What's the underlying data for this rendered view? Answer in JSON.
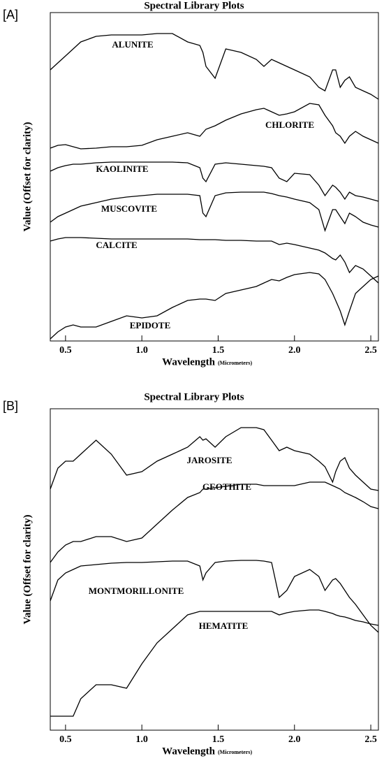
{
  "chart_data": [
    {
      "type": "line",
      "panel_label": "[A]",
      "title": "Spectral Library Plots",
      "xlabel": "Wavelength",
      "xlabel_units": "(Micrometers)",
      "ylabel": "Value (Offset for clarity)",
      "x": [
        0.4,
        0.45,
        0.5,
        0.55,
        0.6,
        0.7,
        0.8,
        0.9,
        1.0,
        1.1,
        1.2,
        1.3,
        1.38,
        1.4,
        1.42,
        1.48,
        1.55,
        1.65,
        1.75,
        1.8,
        1.85,
        1.9,
        1.95,
        2.0,
        2.1,
        2.16,
        2.2,
        2.25,
        2.27,
        2.3,
        2.33,
        2.36,
        2.4,
        2.45,
        2.5,
        2.55
      ],
      "xlim": [
        0.4,
        2.55
      ],
      "ylim": [
        0,
        470
      ],
      "xticks": [
        0.5,
        {
          "value": 1,
          "label": "1.0"
        },
        1.5,
        {
          "value": 2,
          "label": "2.0"
        },
        2.5
      ],
      "series": [
        {
          "name": "ALUNITE",
          "color": "#000000",
          "values": [
            388,
            398,
            408,
            418,
            428,
            436,
            438,
            438,
            438,
            440,
            440,
            428,
            423,
            413,
            393,
            376,
            418,
            413,
            403,
            393,
            403,
            398,
            393,
            388,
            378,
            363,
            358,
            388,
            388,
            363,
            373,
            378,
            363,
            358,
            353,
            346
          ]
        },
        {
          "name": "CHLORITE",
          "color": "#000000",
          "values": [
            276,
            280,
            281,
            278,
            275,
            276,
            278,
            278,
            280,
            288,
            293,
            298,
            293,
            298,
            303,
            308,
            316,
            325,
            331,
            333,
            328,
            323,
            325,
            328,
            340,
            338,
            323,
            308,
            298,
            293,
            283,
            293,
            300,
            293,
            288,
            283
          ]
        },
        {
          "name": "KAOLINITE",
          "color": "#000000",
          "values": [
            243,
            248,
            251,
            253,
            253,
            255,
            256,
            256,
            256,
            256,
            256,
            255,
            248,
            233,
            228,
            253,
            255,
            253,
            251,
            250,
            248,
            233,
            228,
            240,
            238,
            223,
            208,
            223,
            220,
            213,
            203,
            213,
            208,
            206,
            203,
            200
          ]
        },
        {
          "name": "MUSCOVITE",
          "color": "#000000",
          "values": [
            170,
            178,
            183,
            188,
            193,
            198,
            203,
            206,
            208,
            210,
            210,
            210,
            208,
            183,
            178,
            208,
            212,
            213,
            213,
            213,
            211,
            208,
            206,
            203,
            198,
            188,
            158,
            188,
            188,
            178,
            168,
            183,
            178,
            170,
            166,
            163
          ]
        },
        {
          "name": "CALCITE",
          "color": "#000000",
          "values": [
            143,
            146,
            148,
            148,
            148,
            147,
            146,
            146,
            146,
            146,
            146,
            146,
            145,
            145,
            145,
            145,
            144,
            144,
            143,
            143,
            143,
            138,
            140,
            138,
            133,
            130,
            126,
            118,
            116,
            123,
            113,
            98,
            108,
            103,
            93,
            83
          ]
        },
        {
          "name": "EPIDOTE",
          "color": "#000000",
          "values": [
            3,
            13,
            20,
            23,
            20,
            20,
            28,
            36,
            33,
            36,
            48,
            58,
            60,
            60,
            60,
            58,
            68,
            73,
            78,
            83,
            88,
            86,
            91,
            95,
            98,
            96,
            88,
            68,
            58,
            43,
            23,
            43,
            68,
            78,
            88,
            93
          ]
        }
      ]
    },
    {
      "type": "line",
      "panel_label": "[B]",
      "title": "Spectral Library Plots",
      "xlabel": "Wavelength",
      "xlabel_units": "(Micrometers)",
      "ylabel": "Value (Offset for clarity)",
      "x": [
        0.4,
        0.45,
        0.5,
        0.55,
        0.6,
        0.7,
        0.8,
        0.9,
        1.0,
        1.1,
        1.2,
        1.3,
        1.38,
        1.4,
        1.42,
        1.48,
        1.55,
        1.65,
        1.75,
        1.8,
        1.85,
        1.9,
        1.95,
        2.0,
        2.1,
        2.16,
        2.2,
        2.25,
        2.27,
        2.3,
        2.33,
        2.36,
        2.4,
        2.45,
        2.5,
        2.55
      ],
      "xlim": [
        0.4,
        2.55
      ],
      "ylim": [
        0,
        460
      ],
      "xticks": [
        0.5,
        {
          "value": 1,
          "label": "1.0"
        },
        1.5,
        {
          "value": 2,
          "label": "2.0"
        },
        2.5
      ],
      "series": [
        {
          "name": "JAROSITE",
          "color": "#000000",
          "values": [
            345,
            375,
            385,
            385,
            395,
            415,
            395,
            365,
            370,
            385,
            395,
            405,
            420,
            415,
            417,
            405,
            420,
            433,
            433,
            430,
            415,
            400,
            405,
            400,
            395,
            385,
            377,
            355,
            370,
            385,
            390,
            375,
            365,
            355,
            345,
            343
          ]
        },
        {
          "name": "GEOTHITE",
          "color": "#000000",
          "values": [
            240,
            255,
            265,
            270,
            270,
            277,
            277,
            270,
            275,
            295,
            315,
            333,
            340,
            345,
            345,
            347,
            349,
            352,
            352,
            350,
            350,
            350,
            350,
            350,
            355,
            355,
            355,
            350,
            348,
            345,
            340,
            337,
            333,
            327,
            320,
            317
          ]
        },
        {
          "name": "MONTMORILLONITE",
          "color": "#000000",
          "values": [
            185,
            215,
            225,
            230,
            235,
            237,
            239,
            240,
            240,
            241,
            242,
            242,
            235,
            215,
            225,
            240,
            242,
            243,
            243,
            242,
            240,
            190,
            200,
            220,
            230,
            220,
            200,
            215,
            217,
            210,
            200,
            190,
            180,
            165,
            150,
            140
          ]
        },
        {
          "name": "HEMATITE",
          "color": "#000000",
          "values": [
            20,
            20,
            20,
            20,
            45,
            65,
            65,
            60,
            95,
            125,
            145,
            165,
            170,
            170,
            170,
            170,
            170,
            170,
            170,
            170,
            170,
            165,
            168,
            170,
            172,
            172,
            170,
            167,
            165,
            163,
            162,
            160,
            157,
            155,
            152,
            150
          ]
        }
      ]
    }
  ]
}
